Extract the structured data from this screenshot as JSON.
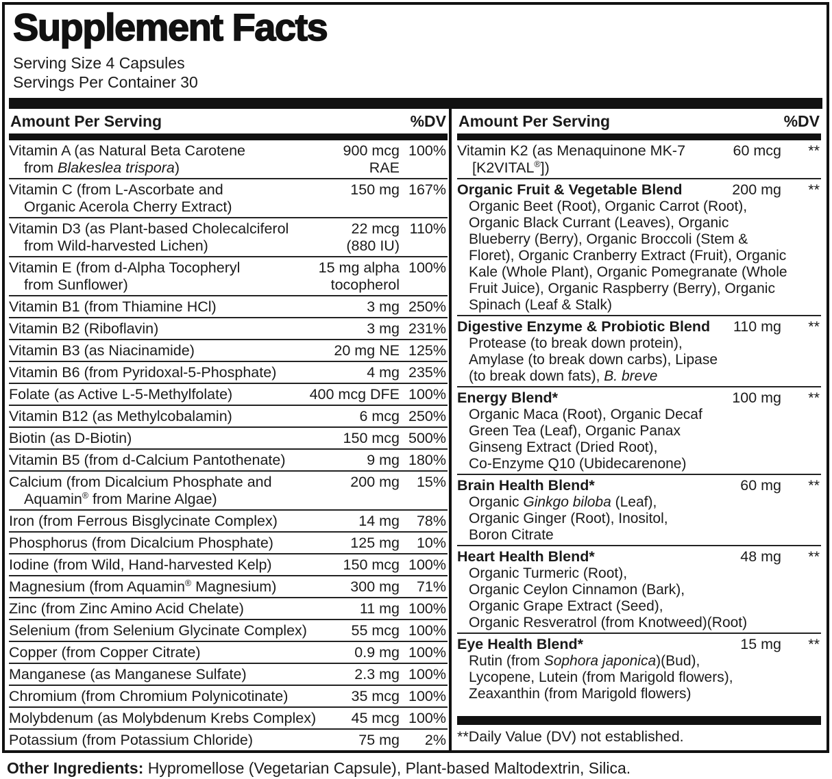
{
  "title": "Supplement Facts",
  "serving_size": "Serving Size 4 Capsules",
  "servings_per_container": "Servings Per Container 30",
  "column_header": {
    "amount": "Amount Per Serving",
    "dv": "%DV"
  },
  "left_rows": [
    {
      "name": "Vitamin A (as Natural Beta Carotene\nfrom _Blakeslea trispora_)",
      "amount": "900 mcg\nRAE",
      "dv": "100%"
    },
    {
      "name": "Vitamin C (from L-Ascorbate and\nOrganic Acerola Cherry Extract)",
      "amount": "150 mg",
      "dv": "167%"
    },
    {
      "name": "Vitamin D3 (as Plant-based Cholecalciferol\nfrom Wild-harvested Lichen)",
      "amount": "22 mcg\n(880 IU)",
      "dv": "110%"
    },
    {
      "name": "Vitamin E (from d-Alpha Tocopheryl\nfrom Sunflower)",
      "amount": "15 mg alpha\ntocopherol",
      "dv": "100%"
    },
    {
      "name": "Vitamin B1 (from Thiamine HCl)",
      "amount": "3 mg",
      "dv": "250%"
    },
    {
      "name": "Vitamin B2 (Riboflavin)",
      "amount": "3 mg",
      "dv": "231%"
    },
    {
      "name": "Vitamin B3 (as Niacinamide)",
      "amount": "20 mg NE",
      "dv": "125%"
    },
    {
      "name": "Vitamin B6 (from Pyridoxal-5-Phosphate)",
      "amount": "4 mg",
      "dv": "235%"
    },
    {
      "name": "Folate (as Active L-5-Methylfolate)",
      "amount": "400 mcg DFE",
      "dv": "100%"
    },
    {
      "name": "Vitamin B12 (as Methylcobalamin)",
      "amount": "6 mcg",
      "dv": "250%"
    },
    {
      "name": "Biotin (as D-Biotin)",
      "amount": "150 mcg",
      "dv": "500%"
    },
    {
      "name": "Vitamin B5 (from d-Calcium Pantothenate)",
      "amount": "9 mg",
      "dv": "180%"
    },
    {
      "name": "Calcium (from Dicalcium Phosphate and\nAquamin^®^ from Marine Algae)",
      "amount": "200 mg",
      "dv": "15%"
    },
    {
      "name": "Iron (from Ferrous Bisglycinate Complex)",
      "amount": "14 mg",
      "dv": "78%"
    },
    {
      "name": "Phosphorus (from Dicalcium Phosphate)",
      "amount": "125 mg",
      "dv": "10%"
    },
    {
      "name": "Iodine (from Wild, Hand-harvested Kelp)",
      "amount": "150 mcg",
      "dv": "100%"
    },
    {
      "name": "Magnesium (from Aquamin^®^ Magnesium)",
      "amount": "300 mg",
      "dv": "71%"
    },
    {
      "name": "Zinc (from Zinc Amino Acid Chelate)",
      "amount": "11 mg",
      "dv": "100%"
    },
    {
      "name": "Selenium (from Selenium Glycinate Complex)",
      "amount": "55 mcg",
      "dv": "100%"
    },
    {
      "name": "Copper (from Copper Citrate)",
      "amount": "0.9 mg",
      "dv": "100%"
    },
    {
      "name": "Manganese (as Manganese Sulfate)",
      "amount": "2.3 mg",
      "dv": "100%"
    },
    {
      "name": "Chromium (from Chromium Polynicotinate)",
      "amount": "35 mcg",
      "dv": "100%"
    },
    {
      "name": "Molybdenum (as Molybdenum Krebs Complex)",
      "amount": "45 mcg",
      "dv": "100%"
    },
    {
      "name": "Potassium (from Potassium Chloride)",
      "amount": "75 mg",
      "dv": "2%"
    }
  ],
  "right_rows": [
    {
      "name": "Vitamin K2 (as Menaquinone MK-7\n[K2VITAL^®^])",
      "amount": "60 mcg",
      "dv": "**"
    },
    {
      "bold": true,
      "name": "Organic Fruit & Vegetable Blend",
      "amount": "200 mg",
      "dv": "**",
      "desc": "Organic Beet (Root), Organic Carrot (Root),\nOrganic Black Currant (Leaves), Organic\nBlueberry (Berry), Organic Broccoli (Stem &\nFloret), Organic Cranberry Extract (Fruit), Organic\nKale (Whole Plant), Organic Pomegranate (Whole\nFruit Juice), Organic Raspberry (Berry), Organic\nSpinach (Leaf & Stalk)"
    },
    {
      "bold": true,
      "name": "Digestive Enzyme & Probiotic Blend",
      "amount": "110 mg",
      "dv": "**",
      "desc": "Protease (to break down protein),\nAmylase (to break down carbs), Lipase\n(to break down fats), _B. breve_"
    },
    {
      "bold": true,
      "name": "Energy Blend*",
      "amount": "100 mg",
      "dv": "**",
      "desc": "Organic Maca (Root), Organic Decaf\nGreen Tea (Leaf), Organic Panax\nGinseng Extract (Dried Root),\nCo-Enzyme Q10 (Ubidecarenone)"
    },
    {
      "bold": true,
      "name": "Brain Health Blend*",
      "amount": "60 mg",
      "dv": "**",
      "desc": "Organic _Ginkgo biloba_ (Leaf),\nOrganic Ginger (Root), Inositol,\nBoron Citrate"
    },
    {
      "bold": true,
      "name": "Heart Health Blend*",
      "amount": "48 mg",
      "dv": "**",
      "desc": "Organic Turmeric (Root),\nOrganic Ceylon Cinnamon (Bark),\nOrganic Grape Extract (Seed),\nOrganic Resveratrol (from Knotweed)(Root)"
    },
    {
      "bold": true,
      "name": "Eye Health Blend*",
      "amount": "15 mg",
      "dv": "**",
      "desc": "Rutin (from _Sophora japonica_)(Bud),\nLycopene, Lutein (from Marigold flowers),\nZeaxanthin (from Marigold flowers)"
    }
  ],
  "footnote": "**Daily Value (DV) not established.",
  "other_ingredients": {
    "label": "Other Ingredients:",
    "text": "Hypromellose (Vegetarian Capsule), Plant-based Maltodextrin, Silica."
  },
  "colors": {
    "ink": "#1a1a1a",
    "bar": "#111111",
    "background": "#ffffff"
  }
}
